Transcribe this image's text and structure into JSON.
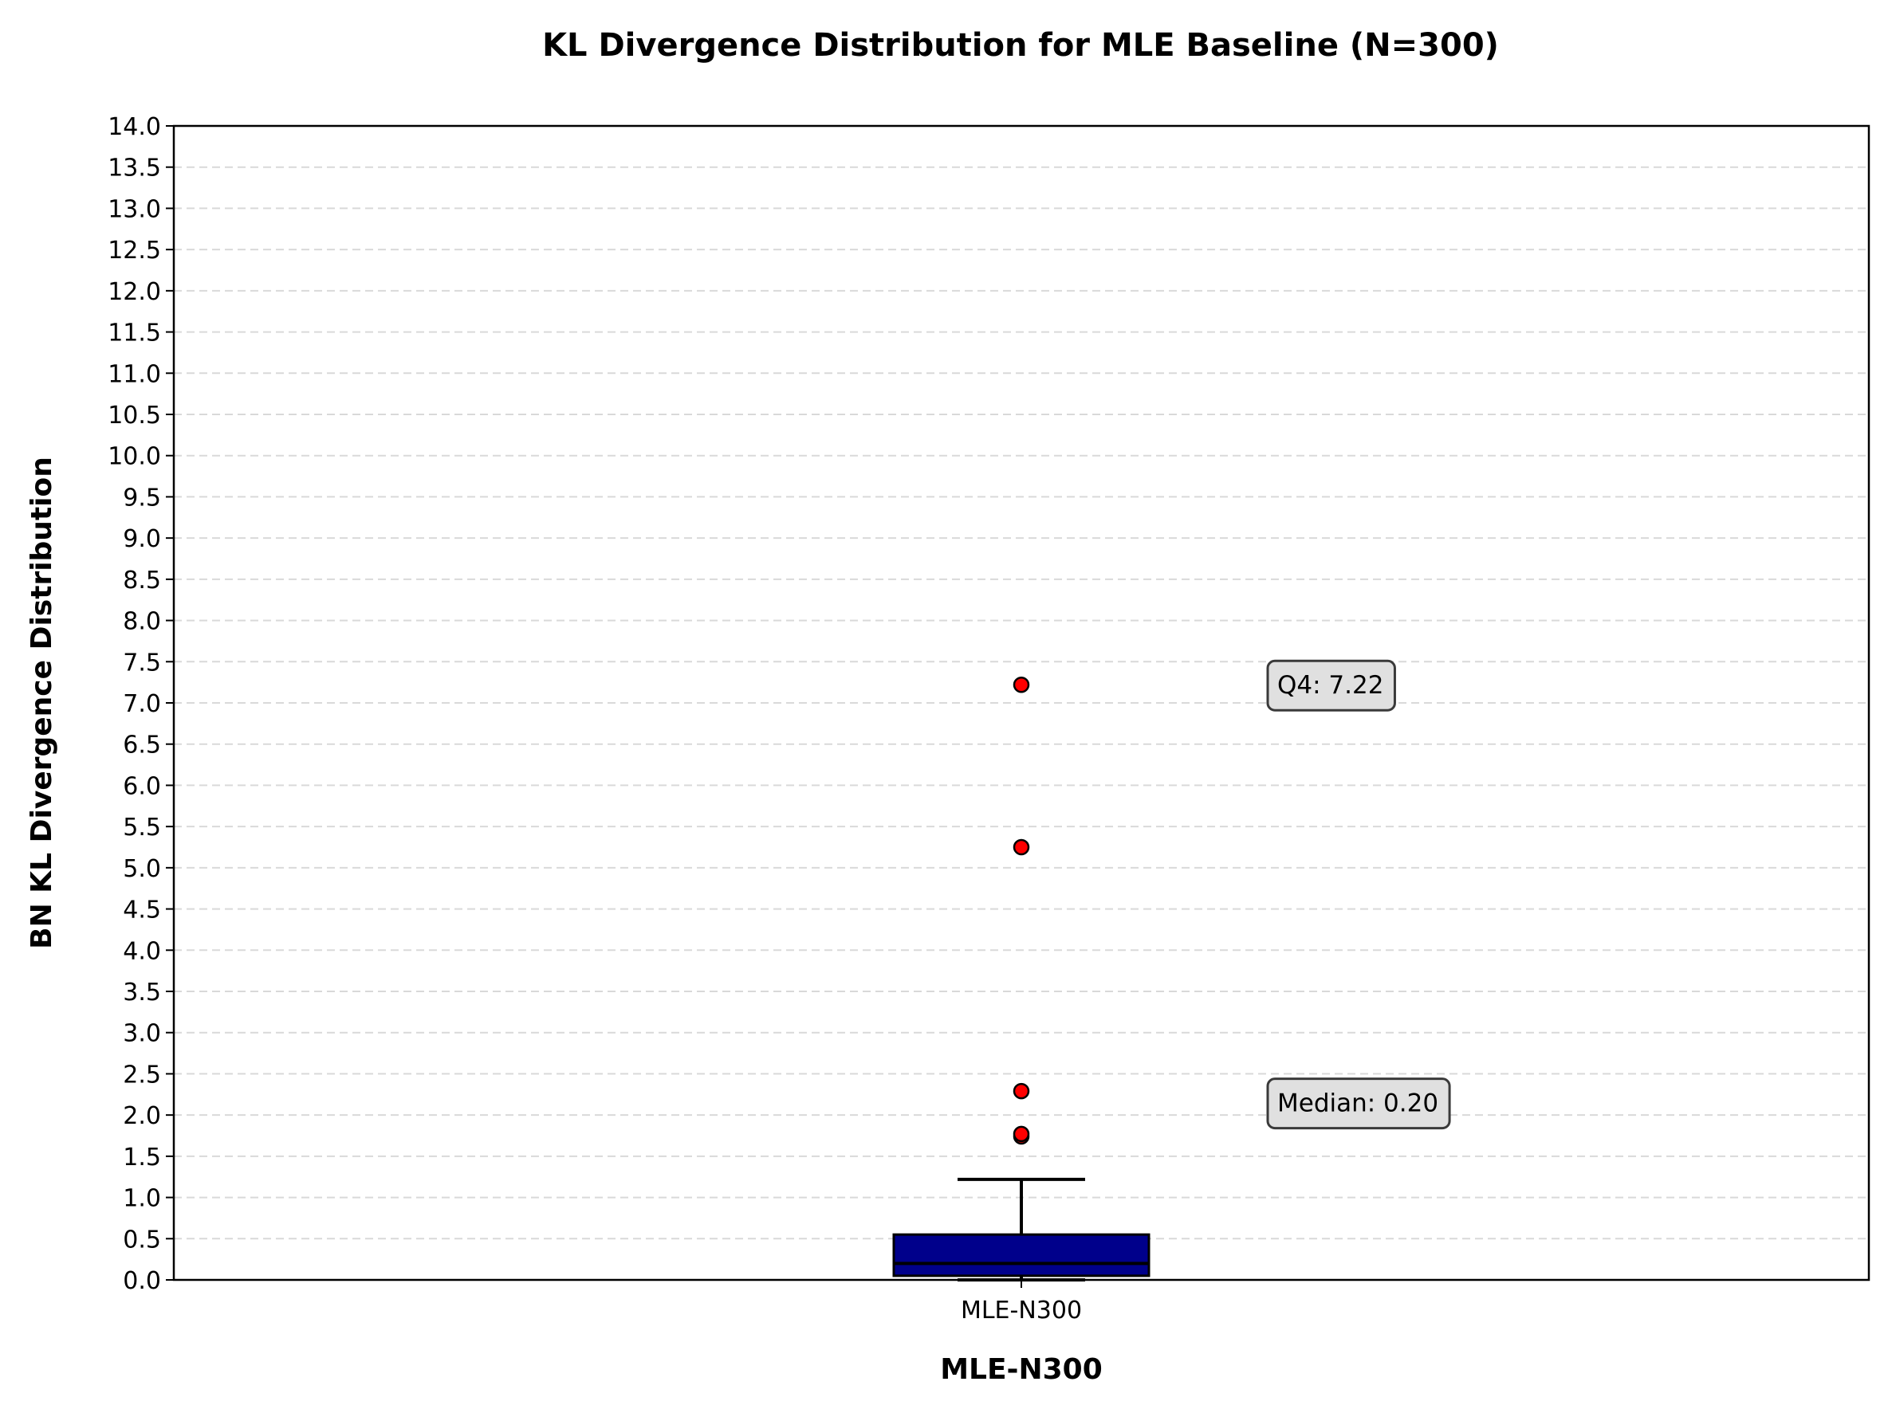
{
  "chart_data": {
    "type": "box",
    "title": "KL Divergence Distribution for MLE Baseline (N=300)",
    "xlabel": "MLE-N300",
    "ylabel": "BN KL Divergence Distribution",
    "categories": [
      "MLE-N300"
    ],
    "ylim": [
      0,
      14
    ],
    "ytick_step": 0.5,
    "grid": "y-dashed",
    "box": {
      "name": "MLE-N300",
      "min": 0.0,
      "q1": 0.05,
      "median": 0.2,
      "q3": 0.55,
      "whisker_low": 0.0,
      "whisker_high": 1.22,
      "outliers": [
        1.74,
        1.77,
        2.29,
        5.25,
        7.22
      ]
    },
    "annotations": [
      {
        "text": "Q4: 7.22",
        "value": 7.22
      },
      {
        "text": "Median: 0.20",
        "value": 2.15
      }
    ],
    "colors": {
      "box_fill": "#00008b",
      "outlier_fill": "#ff0000",
      "annotation_bg": "#e0e0e0",
      "grid": "#d9d9d9"
    }
  }
}
